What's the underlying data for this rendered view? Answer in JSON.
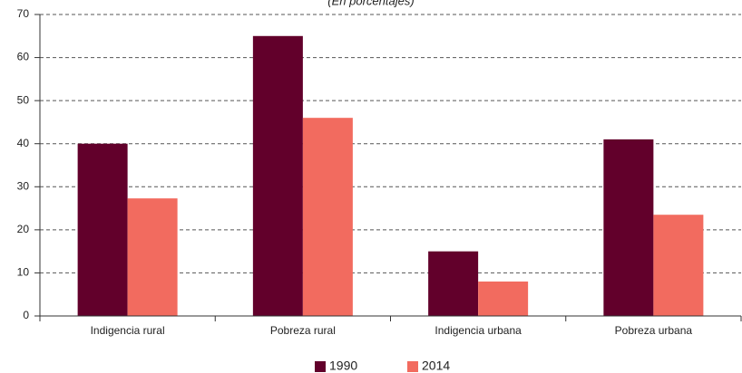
{
  "chart_data": {
    "type": "bar",
    "subtitle": "(En porcentajes)",
    "categories": [
      "Indigencia rural",
      "Pobreza rural",
      "Indigencia urbana",
      "Pobreza urbana"
    ],
    "series": [
      {
        "name": "1990",
        "color": "#62002b",
        "values": [
          40,
          65,
          15,
          41
        ]
      },
      {
        "name": "2014",
        "color": "#f26b5f",
        "values": [
          27.3,
          46,
          8,
          23.5
        ]
      }
    ],
    "ylim": [
      0,
      70
    ],
    "yticks": [
      0,
      10,
      20,
      30,
      40,
      50,
      60,
      70
    ],
    "grid": true,
    "legend": "bottom"
  }
}
